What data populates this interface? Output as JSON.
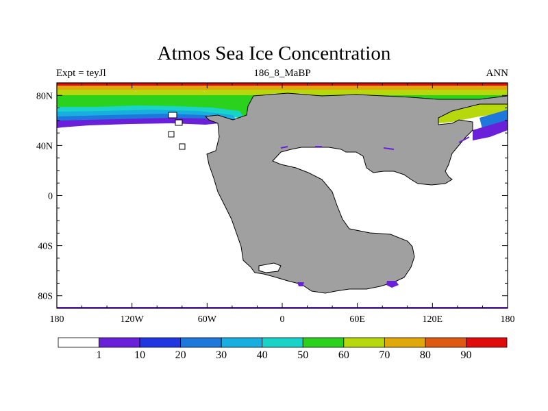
{
  "title": "Atmos Sea Ice Concentration",
  "experiment_label": "Expt = teyJl",
  "case_label": "186_8_MaBP",
  "season_label": "ANN",
  "x_ticks": [
    "180",
    "120W",
    "60W",
    "0",
    "60E",
    "120E",
    "180"
  ],
  "y_ticks": [
    "80N",
    "40N",
    "0",
    "40S",
    "80S"
  ],
  "colorbar_labels": [
    "1",
    "10",
    "20",
    "30",
    "40",
    "50",
    "60",
    "70",
    "80",
    "90"
  ],
  "colorbar_colors": [
    "#ffffff",
    "#6a1fd8",
    "#1f36e0",
    "#1e78dc",
    "#19aee0",
    "#1ad3c8",
    "#2ad21e",
    "#b8d80e",
    "#e0a80a",
    "#de5a10",
    "#e00c0c"
  ],
  "land_color": "#a0a0a0"
}
